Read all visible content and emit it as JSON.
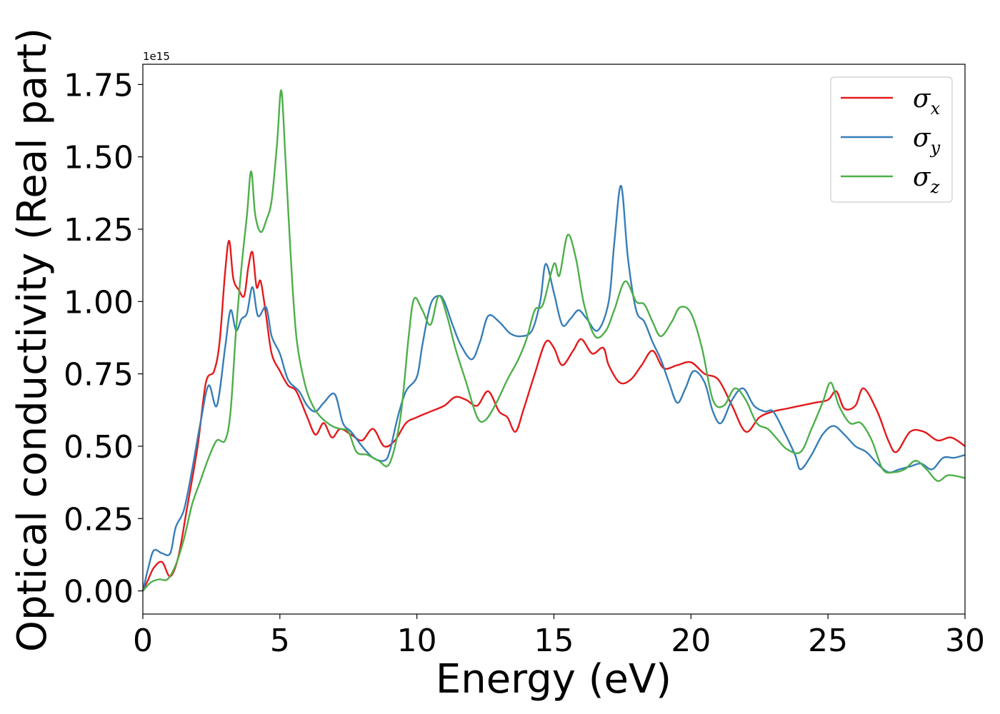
{
  "chart_data": {
    "type": "line",
    "title": "",
    "xlabel": "Energy (eV)",
    "ylabel": "Optical conductivity (Real part)",
    "y_offset_label": "1e15",
    "xlim": [
      0,
      30
    ],
    "ylim": [
      -0.08,
      1.82
    ],
    "x_ticks": [
      0,
      5,
      10,
      15,
      20,
      25,
      30
    ],
    "x_tick_labels": [
      "0",
      "5",
      "10",
      "15",
      "20",
      "25",
      "30"
    ],
    "y_ticks": [
      0.0,
      0.25,
      0.5,
      0.75,
      1.0,
      1.25,
      1.5,
      1.75
    ],
    "y_tick_labels": [
      "0.00",
      "0.25",
      "0.50",
      "0.75",
      "1.00",
      "1.25",
      "1.50",
      "1.75"
    ],
    "grid": false,
    "legend_position": "top-right",
    "series": [
      {
        "name": "σx",
        "symbol": "σ",
        "subscript": "x",
        "color": "#e41a1c",
        "points": [
          [
            0,
            0
          ],
          [
            0.2,
            0.04
          ],
          [
            0.4,
            0.08
          ],
          [
            0.7,
            0.1
          ],
          [
            1.0,
            0.05
          ],
          [
            1.3,
            0.12
          ],
          [
            1.6,
            0.28
          ],
          [
            2.0,
            0.5
          ],
          [
            2.3,
            0.72
          ],
          [
            2.6,
            0.76
          ],
          [
            2.8,
            0.86
          ],
          [
            3.0,
            1.1
          ],
          [
            3.15,
            1.21
          ],
          [
            3.3,
            1.08
          ],
          [
            3.5,
            1.04
          ],
          [
            3.7,
            1.02
          ],
          [
            3.85,
            1.12
          ],
          [
            4.0,
            1.17
          ],
          [
            4.15,
            1.05
          ],
          [
            4.3,
            1.07
          ],
          [
            4.5,
            0.95
          ],
          [
            4.7,
            0.82
          ],
          [
            5.0,
            0.76
          ],
          [
            5.3,
            0.71
          ],
          [
            5.6,
            0.69
          ],
          [
            6.0,
            0.6
          ],
          [
            6.3,
            0.54
          ],
          [
            6.6,
            0.58
          ],
          [
            6.9,
            0.53
          ],
          [
            7.2,
            0.56
          ],
          [
            7.6,
            0.54
          ],
          [
            8.0,
            0.52
          ],
          [
            8.4,
            0.56
          ],
          [
            8.8,
            0.5
          ],
          [
            9.2,
            0.52
          ],
          [
            9.6,
            0.58
          ],
          [
            10.0,
            0.6
          ],
          [
            10.5,
            0.62
          ],
          [
            11.0,
            0.64
          ],
          [
            11.4,
            0.67
          ],
          [
            11.8,
            0.66
          ],
          [
            12.2,
            0.64
          ],
          [
            12.6,
            0.69
          ],
          [
            13.0,
            0.62
          ],
          [
            13.3,
            0.6
          ],
          [
            13.6,
            0.55
          ],
          [
            13.9,
            0.63
          ],
          [
            14.3,
            0.75
          ],
          [
            14.7,
            0.86
          ],
          [
            15.0,
            0.84
          ],
          [
            15.3,
            0.78
          ],
          [
            15.7,
            0.83
          ],
          [
            16.0,
            0.87
          ],
          [
            16.4,
            0.82
          ],
          [
            16.8,
            0.84
          ],
          [
            17.0,
            0.78
          ],
          [
            17.4,
            0.72
          ],
          [
            17.8,
            0.73
          ],
          [
            18.2,
            0.78
          ],
          [
            18.6,
            0.83
          ],
          [
            19.0,
            0.77
          ],
          [
            19.5,
            0.78
          ],
          [
            20.0,
            0.79
          ],
          [
            20.5,
            0.75
          ],
          [
            21.0,
            0.73
          ],
          [
            21.5,
            0.64
          ],
          [
            22.0,
            0.55
          ],
          [
            22.5,
            0.6
          ],
          [
            23.0,
            0.62
          ],
          [
            23.5,
            0.63
          ],
          [
            24.0,
            0.64
          ],
          [
            24.5,
            0.65
          ],
          [
            25.0,
            0.66
          ],
          [
            25.3,
            0.69
          ],
          [
            25.6,
            0.63
          ],
          [
            26.0,
            0.64
          ],
          [
            26.3,
            0.7
          ],
          [
            26.8,
            0.62
          ],
          [
            27.2,
            0.52
          ],
          [
            27.5,
            0.48
          ],
          [
            28.0,
            0.55
          ],
          [
            28.5,
            0.55
          ],
          [
            29.0,
            0.52
          ],
          [
            29.5,
            0.53
          ],
          [
            30.0,
            0.5
          ]
        ]
      },
      {
        "name": "σy",
        "symbol": "σ",
        "subscript": "y",
        "color": "#377eb8",
        "points": [
          [
            0,
            0
          ],
          [
            0.2,
            0.08
          ],
          [
            0.4,
            0.14
          ],
          [
            0.7,
            0.13
          ],
          [
            1.0,
            0.13
          ],
          [
            1.2,
            0.22
          ],
          [
            1.5,
            0.28
          ],
          [
            1.8,
            0.42
          ],
          [
            2.1,
            0.58
          ],
          [
            2.4,
            0.71
          ],
          [
            2.7,
            0.64
          ],
          [
            3.0,
            0.84
          ],
          [
            3.2,
            0.97
          ],
          [
            3.4,
            0.9
          ],
          [
            3.6,
            0.94
          ],
          [
            3.8,
            0.96
          ],
          [
            4.0,
            1.05
          ],
          [
            4.2,
            0.95
          ],
          [
            4.5,
            0.98
          ],
          [
            4.7,
            0.88
          ],
          [
            5.0,
            0.82
          ],
          [
            5.3,
            0.73
          ],
          [
            5.7,
            0.69
          ],
          [
            6.0,
            0.64
          ],
          [
            6.3,
            0.62
          ],
          [
            6.6,
            0.65
          ],
          [
            7.0,
            0.68
          ],
          [
            7.3,
            0.58
          ],
          [
            7.6,
            0.55
          ],
          [
            8.0,
            0.5
          ],
          [
            8.4,
            0.46
          ],
          [
            8.8,
            0.45
          ],
          [
            9.0,
            0.48
          ],
          [
            9.3,
            0.6
          ],
          [
            9.6,
            0.69
          ],
          [
            10.0,
            0.74
          ],
          [
            10.2,
            0.85
          ],
          [
            10.5,
            0.99
          ],
          [
            10.8,
            1.02
          ],
          [
            11.0,
            1.0
          ],
          [
            11.3,
            0.92
          ],
          [
            11.6,
            0.85
          ],
          [
            12.0,
            0.8
          ],
          [
            12.3,
            0.86
          ],
          [
            12.6,
            0.95
          ],
          [
            13.0,
            0.93
          ],
          [
            13.4,
            0.89
          ],
          [
            13.8,
            0.88
          ],
          [
            14.2,
            0.9
          ],
          [
            14.5,
            1.0
          ],
          [
            14.7,
            1.13
          ],
          [
            15.0,
            1.03
          ],
          [
            15.3,
            0.92
          ],
          [
            15.6,
            0.94
          ],
          [
            15.9,
            0.97
          ],
          [
            16.2,
            0.94
          ],
          [
            16.6,
            0.9
          ],
          [
            17.0,
            1.0
          ],
          [
            17.2,
            1.2
          ],
          [
            17.45,
            1.4
          ],
          [
            17.7,
            1.15
          ],
          [
            18.0,
            0.97
          ],
          [
            18.3,
            0.93
          ],
          [
            18.6,
            0.86
          ],
          [
            18.9,
            0.8
          ],
          [
            19.2,
            0.72
          ],
          [
            19.5,
            0.65
          ],
          [
            19.8,
            0.7
          ],
          [
            20.1,
            0.76
          ],
          [
            20.5,
            0.72
          ],
          [
            20.8,
            0.62
          ],
          [
            21.1,
            0.58
          ],
          [
            21.5,
            0.66
          ],
          [
            21.9,
            0.7
          ],
          [
            22.3,
            0.64
          ],
          [
            22.7,
            0.62
          ],
          [
            23.0,
            0.62
          ],
          [
            23.4,
            0.55
          ],
          [
            23.8,
            0.47
          ],
          [
            24.0,
            0.42
          ],
          [
            24.4,
            0.47
          ],
          [
            24.8,
            0.54
          ],
          [
            25.2,
            0.57
          ],
          [
            25.6,
            0.54
          ],
          [
            26.0,
            0.5
          ],
          [
            26.4,
            0.48
          ],
          [
            26.8,
            0.44
          ],
          [
            27.2,
            0.41
          ],
          [
            27.6,
            0.42
          ],
          [
            28.0,
            0.43
          ],
          [
            28.4,
            0.44
          ],
          [
            28.8,
            0.42
          ],
          [
            29.2,
            0.46
          ],
          [
            29.6,
            0.46
          ],
          [
            30.0,
            0.47
          ]
        ]
      },
      {
        "name": "σz",
        "symbol": "σ",
        "subscript": "z",
        "color": "#4daf4a",
        "points": [
          [
            0,
            0
          ],
          [
            0.3,
            0.03
          ],
          [
            0.6,
            0.04
          ],
          [
            0.9,
            0.04
          ],
          [
            1.2,
            0.09
          ],
          [
            1.5,
            0.18
          ],
          [
            1.8,
            0.3
          ],
          [
            2.1,
            0.38
          ],
          [
            2.4,
            0.46
          ],
          [
            2.7,
            0.52
          ],
          [
            3.0,
            0.52
          ],
          [
            3.2,
            0.62
          ],
          [
            3.4,
            0.9
          ],
          [
            3.6,
            1.12
          ],
          [
            3.8,
            1.3
          ],
          [
            3.95,
            1.45
          ],
          [
            4.1,
            1.3
          ],
          [
            4.3,
            1.24
          ],
          [
            4.5,
            1.28
          ],
          [
            4.7,
            1.35
          ],
          [
            4.9,
            1.55
          ],
          [
            5.05,
            1.73
          ],
          [
            5.2,
            1.5
          ],
          [
            5.4,
            1.15
          ],
          [
            5.6,
            0.88
          ],
          [
            5.9,
            0.72
          ],
          [
            6.2,
            0.64
          ],
          [
            6.5,
            0.6
          ],
          [
            6.9,
            0.57
          ],
          [
            7.2,
            0.56
          ],
          [
            7.5,
            0.55
          ],
          [
            7.8,
            0.48
          ],
          [
            8.2,
            0.47
          ],
          [
            8.6,
            0.45
          ],
          [
            9.0,
            0.44
          ],
          [
            9.4,
            0.6
          ],
          [
            9.7,
            0.88
          ],
          [
            9.9,
            1.01
          ],
          [
            10.2,
            0.97
          ],
          [
            10.5,
            0.92
          ],
          [
            10.8,
            1.02
          ],
          [
            11.1,
            0.95
          ],
          [
            11.4,
            0.84
          ],
          [
            11.8,
            0.72
          ],
          [
            12.2,
            0.6
          ],
          [
            12.5,
            0.59
          ],
          [
            12.9,
            0.65
          ],
          [
            13.3,
            0.73
          ],
          [
            13.7,
            0.8
          ],
          [
            14.0,
            0.87
          ],
          [
            14.3,
            0.97
          ],
          [
            14.6,
            0.99
          ],
          [
            15.0,
            1.13
          ],
          [
            15.2,
            1.09
          ],
          [
            15.5,
            1.23
          ],
          [
            15.8,
            1.15
          ],
          [
            16.1,
            0.99
          ],
          [
            16.5,
            0.88
          ],
          [
            16.9,
            0.9
          ],
          [
            17.2,
            0.97
          ],
          [
            17.6,
            1.07
          ],
          [
            18.0,
            1.0
          ],
          [
            18.3,
            0.99
          ],
          [
            18.6,
            0.93
          ],
          [
            18.9,
            0.88
          ],
          [
            19.3,
            0.93
          ],
          [
            19.6,
            0.98
          ],
          [
            20.0,
            0.96
          ],
          [
            20.4,
            0.84
          ],
          [
            20.8,
            0.66
          ],
          [
            21.2,
            0.64
          ],
          [
            21.6,
            0.7
          ],
          [
            22.0,
            0.66
          ],
          [
            22.4,
            0.58
          ],
          [
            22.8,
            0.56
          ],
          [
            23.1,
            0.53
          ],
          [
            23.5,
            0.49
          ],
          [
            24.0,
            0.48
          ],
          [
            24.4,
            0.56
          ],
          [
            24.8,
            0.65
          ],
          [
            25.1,
            0.72
          ],
          [
            25.4,
            0.64
          ],
          [
            25.8,
            0.58
          ],
          [
            26.2,
            0.58
          ],
          [
            26.6,
            0.52
          ],
          [
            27.0,
            0.42
          ],
          [
            27.4,
            0.41
          ],
          [
            27.8,
            0.42
          ],
          [
            28.2,
            0.45
          ],
          [
            28.6,
            0.42
          ],
          [
            29.0,
            0.38
          ],
          [
            29.4,
            0.4
          ],
          [
            30.0,
            0.39
          ]
        ]
      }
    ]
  }
}
